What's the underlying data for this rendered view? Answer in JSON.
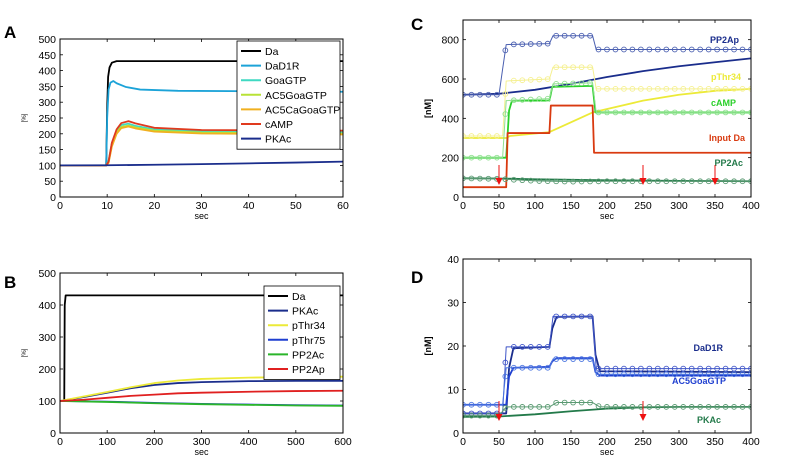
{
  "chart_data": [
    {
      "panel": "A",
      "type": "line",
      "xlabel": "sec",
      "ylabel": "[%]",
      "xlim": [
        0,
        60
      ],
      "ylim": [
        0,
        500
      ],
      "xticks": [
        0,
        10,
        20,
        30,
        40,
        50,
        60
      ],
      "yticks": [
        0,
        50,
        100,
        150,
        200,
        250,
        300,
        350,
        400,
        450,
        500
      ],
      "legend_position": "top-right",
      "series": [
        {
          "name": "Da",
          "color": "#000000",
          "x": [
            0,
            9.8,
            10,
            10.2,
            10.5,
            11,
            12,
            60
          ],
          "y": [
            100,
            100,
            280,
            380,
            410,
            425,
            430,
            430
          ]
        },
        {
          "name": "DaD1R",
          "color": "#1ca3d8",
          "x": [
            0,
            9.8,
            10,
            10.3,
            10.7,
            11.3,
            12,
            14,
            17,
            25,
            60
          ],
          "y": [
            100,
            100,
            250,
            340,
            362,
            367,
            360,
            348,
            340,
            336,
            333
          ]
        },
        {
          "name": "GoaGTP",
          "color": "#3fd9c2",
          "x": [
            0,
            9.8,
            10.3,
            11,
            12,
            13,
            14.5,
            16,
            20,
            30,
            60
          ],
          "y": [
            100,
            100,
            115,
            170,
            210,
            228,
            232,
            225,
            214,
            208,
            205
          ]
        },
        {
          "name": "AC5GoaGTP",
          "color": "#b8e236",
          "x": [
            0,
            9.8,
            10.3,
            11,
            12,
            13,
            14.5,
            16,
            20,
            30,
            60
          ],
          "y": [
            100,
            100,
            110,
            165,
            205,
            222,
            226,
            220,
            210,
            204,
            201
          ]
        },
        {
          "name": "AC5CaGoaGTP",
          "color": "#f0b020",
          "x": [
            0,
            9.8,
            10.3,
            11,
            12,
            13,
            14.5,
            16,
            20,
            30,
            60
          ],
          "y": [
            100,
            100,
            108,
            160,
            200,
            218,
            223,
            217,
            207,
            201,
            198
          ]
        },
        {
          "name": "cAMP",
          "color": "#e03a1e",
          "x": [
            0,
            9.8,
            10.3,
            11,
            12,
            13,
            14.5,
            16,
            20,
            30,
            60
          ],
          "y": [
            100,
            100,
            112,
            172,
            214,
            234,
            240,
            233,
            219,
            212,
            210
          ]
        },
        {
          "name": "PKAc",
          "color": "#1a2d8c",
          "x": [
            0,
            10,
            20,
            30,
            40,
            50,
            60
          ],
          "y": [
            100,
            100.5,
            102,
            104,
            106.5,
            109,
            112
          ]
        }
      ]
    },
    {
      "panel": "B",
      "type": "line",
      "xlabel": "sec",
      "ylabel": "[%]",
      "xlim": [
        0,
        600
      ],
      "ylim": [
        0,
        500
      ],
      "xticks": [
        0,
        100,
        200,
        300,
        400,
        500,
        600
      ],
      "yticks": [
        0,
        100,
        200,
        300,
        400,
        500
      ],
      "legend_position": "top-right",
      "series": [
        {
          "name": "Da",
          "color": "#000000",
          "x": [
            0,
            9,
            10,
            12,
            600
          ],
          "y": [
            100,
            100,
            400,
            430,
            430
          ]
        },
        {
          "name": "PKAc",
          "color": "#1a2d8c",
          "x": [
            0,
            50,
            100,
            150,
            200,
            250,
            300,
            400,
            500,
            600
          ],
          "y": [
            100,
            112,
            126,
            140,
            150,
            156,
            159,
            162,
            163,
            163
          ]
        },
        {
          "name": "pThr34",
          "color": "#ecea38",
          "x": [
            0,
            50,
            100,
            150,
            200,
            250,
            300,
            400,
            500,
            600
          ],
          "y": [
            100,
            114,
            128,
            143,
            156,
            164,
            169,
            173,
            175,
            176
          ]
        },
        {
          "name": "pThr75",
          "color": "#1f3fd0",
          "x": [
            0,
            100,
            200,
            300,
            400,
            500,
            600
          ],
          "y": [
            100,
            98,
            94,
            91,
            89,
            87,
            86
          ]
        },
        {
          "name": "PP2Ac",
          "color": "#2ab52a",
          "x": [
            0,
            100,
            200,
            300,
            400,
            500,
            600
          ],
          "y": [
            100,
            97,
            93,
            90,
            88,
            86,
            85
          ]
        },
        {
          "name": "PP2Ap",
          "color": "#e02020",
          "x": [
            0,
            50,
            100,
            150,
            200,
            250,
            300,
            400,
            500,
            600
          ],
          "y": [
            100,
            104,
            110,
            116,
            120,
            124,
            126,
            129,
            131,
            132
          ]
        }
      ]
    },
    {
      "panel": "C",
      "type": "line",
      "xlabel": "sec",
      "ylabel": "[nM]",
      "xlim": [
        0,
        400
      ],
      "ylim": [
        0,
        900
      ],
      "xticks": [
        0,
        50,
        100,
        150,
        200,
        250,
        300,
        350,
        400
      ],
      "yticks": [
        0,
        200,
        400,
        600,
        800
      ],
      "arrows_at_x": [
        50,
        250,
        350
      ],
      "annotations": [
        {
          "text": "PP2Ap",
          "color": "#1a2d8c"
        },
        {
          "text": "pThr34",
          "color": "#ecea38"
        },
        {
          "text": "cAMP",
          "color": "#2ad02a"
        },
        {
          "text": "Input Da",
          "color": "#d93a10"
        },
        {
          "text": "PP2Ac",
          "color": "#237a4a"
        }
      ],
      "series": [
        {
          "name": "PP2Ap simulated",
          "color": "#1a2d8c",
          "x": [
            0,
            50,
            100,
            150,
            200,
            250,
            300,
            350,
            400
          ],
          "y": [
            520,
            525,
            545,
            575,
            610,
            640,
            665,
            685,
            705
          ]
        },
        {
          "name": "PP2Ap experimental",
          "color": "#4a5fb0",
          "markers": true,
          "x": [
            0,
            50,
            55,
            60,
            120,
            125,
            180,
            185,
            400
          ],
          "y": [
            520,
            520,
            650,
            775,
            780,
            820,
            820,
            750,
            750
          ]
        },
        {
          "name": "pThr34 simulated",
          "color": "#ecea38",
          "x": [
            0,
            60,
            65,
            120,
            180,
            250,
            300,
            350,
            400
          ],
          "y": [
            300,
            300,
            310,
            330,
            430,
            490,
            520,
            540,
            550
          ]
        },
        {
          "name": "pThr34 experimental",
          "color": "#f5f090",
          "markers": true,
          "x": [
            0,
            55,
            60,
            120,
            125,
            180,
            185,
            400
          ],
          "y": [
            310,
            310,
            590,
            600,
            660,
            660,
            550,
            550
          ]
        },
        {
          "name": "cAMP simulated",
          "color": "#2ad02a",
          "x": [
            0,
            60,
            64,
            68,
            120,
            124,
            180,
            184,
            400
          ],
          "y": [
            200,
            200,
            440,
            490,
            490,
            560,
            565,
            430,
            430
          ]
        },
        {
          "name": "cAMP experimental",
          "color": "#8fe08f",
          "markers": true,
          "x": [
            0,
            55,
            60,
            120,
            125,
            180,
            185,
            400
          ],
          "y": [
            200,
            200,
            490,
            500,
            575,
            580,
            430,
            430
          ]
        },
        {
          "name": "Input Da",
          "color": "#d93a10",
          "x": [
            0,
            60,
            62,
            120,
            122,
            180,
            182,
            400
          ],
          "y": [
            50,
            50,
            325,
            325,
            465,
            465,
            225,
            225
          ]
        },
        {
          "name": "PP2Ac simulated",
          "color": "#237a4a",
          "x": [
            0,
            50,
            100,
            200,
            300,
            400
          ],
          "y": [
            95,
            94,
            90,
            85,
            82,
            80
          ]
        },
        {
          "name": "PP2Ac experimental",
          "color": "#5a9a72",
          "markers": true,
          "x": [
            0,
            50,
            100,
            150,
            200,
            250,
            300,
            350,
            400
          ],
          "y": [
            95,
            92,
            82,
            78,
            80,
            80,
            80,
            80,
            80
          ]
        }
      ]
    },
    {
      "panel": "D",
      "type": "line",
      "xlabel": "sec",
      "ylabel": "[nM]",
      "xlim": [
        0,
        400
      ],
      "ylim": [
        0,
        40
      ],
      "xticks": [
        0,
        50,
        100,
        150,
        200,
        250,
        300,
        350,
        400
      ],
      "yticks": [
        0,
        10,
        20,
        30,
        40
      ],
      "arrows_at_x": [
        50,
        250
      ],
      "annotations": [
        {
          "text": "DaD1R",
          "color": "#1a2d8c"
        },
        {
          "text": "AC5GoaGTP",
          "color": "#1f3fd0"
        },
        {
          "text": "PKAc",
          "color": "#237a4a"
        }
      ],
      "series": [
        {
          "name": "DaD1R simulated",
          "color": "#1a2d8c",
          "x": [
            0,
            60,
            64,
            70,
            120,
            124,
            130,
            180,
            184,
            190,
            400
          ],
          "y": [
            4.5,
            4.5,
            15,
            19.5,
            19.8,
            24,
            26.7,
            26.8,
            18,
            14.2,
            14
          ]
        },
        {
          "name": "DaD1R experimental",
          "color": "#3f55c8",
          "markers": true,
          "x": [
            0,
            55,
            60,
            120,
            125,
            180,
            185,
            400
          ],
          "y": [
            4.5,
            4.5,
            19.8,
            19.8,
            26.8,
            26.8,
            14.8,
            14.8
          ]
        },
        {
          "name": "AC5GoaGTP simulated",
          "color": "#1f3fd0",
          "x": [
            0,
            60,
            64,
            70,
            120,
            124,
            130,
            180,
            184,
            190,
            400
          ],
          "y": [
            6.5,
            6.5,
            13,
            15,
            15.2,
            16.5,
            17.2,
            17.2,
            14,
            13.2,
            13.2
          ]
        },
        {
          "name": "AC5GoaGTP experimental",
          "color": "#4a75e0",
          "markers": true,
          "x": [
            0,
            55,
            60,
            120,
            125,
            180,
            185,
            400
          ],
          "y": [
            6.5,
            6.5,
            15,
            15,
            17,
            17,
            13.5,
            13.5
          ]
        },
        {
          "name": "PKAc simulated",
          "color": "#237a4a",
          "x": [
            0,
            50,
            100,
            150,
            200,
            250,
            300,
            350,
            400
          ],
          "y": [
            3.7,
            3.8,
            4.3,
            5,
            5.6,
            5.9,
            6,
            6,
            6
          ]
        },
        {
          "name": "PKAc experimental",
          "color": "#5a9a72",
          "markers": true,
          "x": [
            0,
            50,
            60,
            120,
            130,
            180,
            190,
            400
          ],
          "y": [
            4,
            4,
            6,
            6,
            7,
            7,
            6,
            6
          ]
        }
      ]
    }
  ]
}
